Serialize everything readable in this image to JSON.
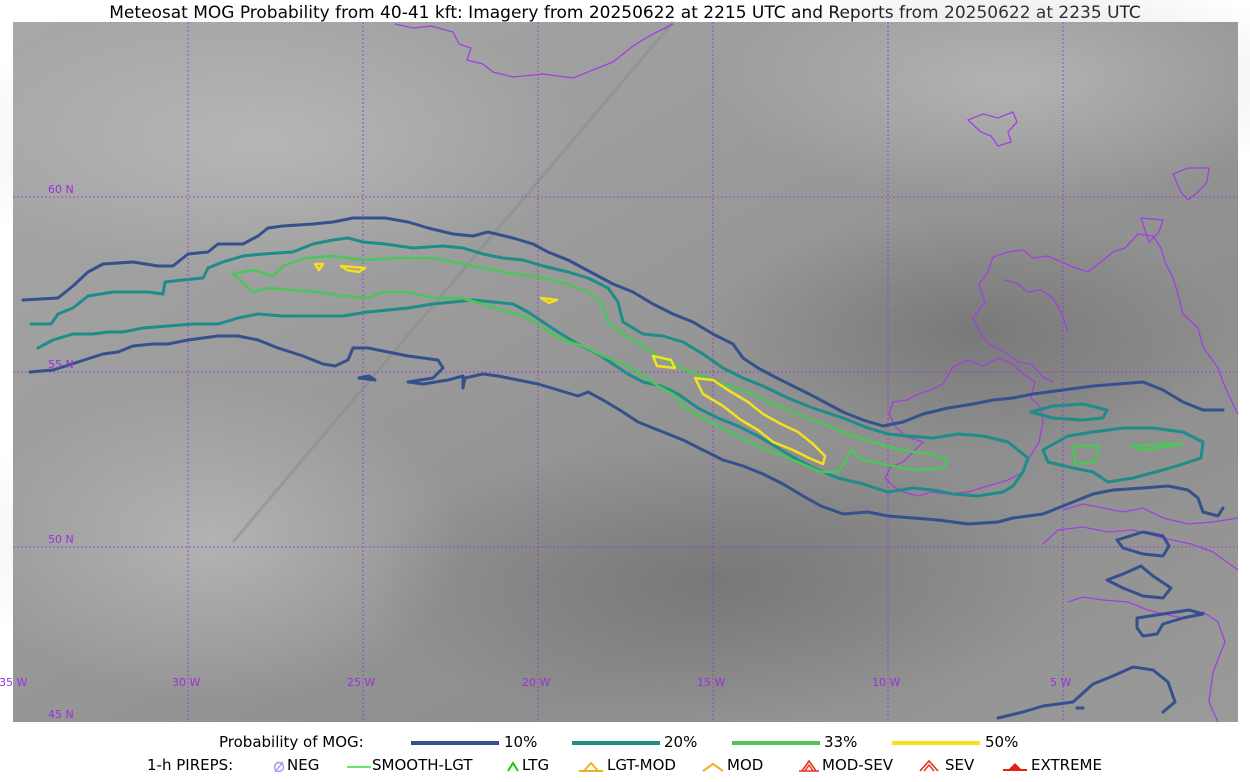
{
  "title": "Meteosat MOG Probability from 40-41 kft: Imagery from 20250622 at 2215 UTC and Reports from 20250622 at 2235 UTC",
  "map": {
    "lat_labels": [
      "60 N",
      "55 N",
      "50 N",
      "45 N"
    ],
    "lon_labels": [
      "35 W",
      "30 W",
      "25 W",
      "20 W",
      "15 W",
      "10 W",
      "5 W"
    ],
    "gridline_color": "#9b30d9",
    "coastline_color": "#a040e0"
  },
  "legend": {
    "probability_label": "Probability of MOG:",
    "contours": [
      {
        "label": "10%",
        "color": "#35508c"
      },
      {
        "label": "20%",
        "color": "#1f8c8a"
      },
      {
        "label": "33%",
        "color": "#4cc55a"
      },
      {
        "label": "50%",
        "color": "#f5e020"
      }
    ],
    "pireps_label": "1-h PIREPS:",
    "pireps": [
      {
        "label": "NEG",
        "icon": "neg-icon",
        "color": "#9a9af0"
      },
      {
        "label": "SMOOTH-LGT",
        "icon": "smooth-lgt-icon",
        "color": "#33dd33"
      },
      {
        "label": "LTG",
        "icon": "ltg-icon",
        "color": "#11cc11"
      },
      {
        "label": "LGT-MOD",
        "icon": "lgt-mod-icon",
        "color": "#f0b020"
      },
      {
        "label": "MOD",
        "icon": "mod-icon",
        "color": "#f0b020"
      },
      {
        "label": "MOD-SEV",
        "icon": "mod-sev-icon",
        "color": "#e83020"
      },
      {
        "label": "SEV",
        "icon": "sev-icon",
        "color": "#e83020"
      },
      {
        "label": "EXTREME",
        "icon": "extreme-icon",
        "color": "#e82010"
      }
    ]
  }
}
